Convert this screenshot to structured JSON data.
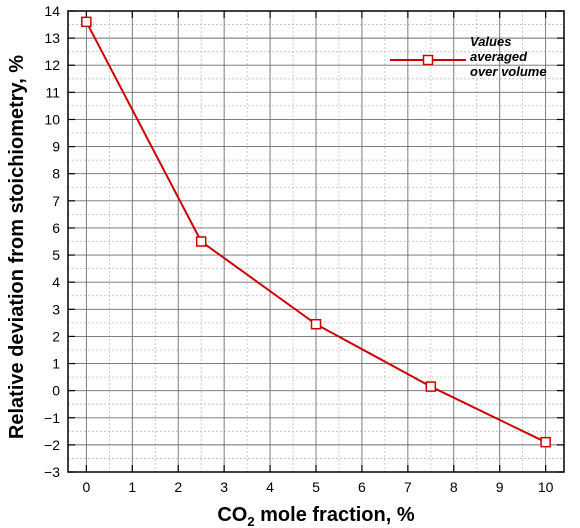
{
  "chart_data": {
    "type": "line",
    "x": [
      0,
      2.5,
      5,
      7.5,
      10
    ],
    "series": [
      {
        "name": "Values averaged over volume",
        "values": [
          13.6,
          5.5,
          2.45,
          0.15,
          -1.9
        ],
        "color": "#cc0000",
        "marker": "open-square"
      }
    ],
    "xlabel": "CO2 mole fraction, %",
    "ylabel": "Relative deviation from stoichiometry, %",
    "xlim": [
      -0.4,
      10.4
    ],
    "ylim": [
      -3,
      14
    ],
    "x_ticks": [
      0,
      1,
      2,
      3,
      4,
      5,
      6,
      7,
      8,
      9,
      10
    ],
    "y_ticks": [
      -3,
      -2,
      -1,
      0,
      1,
      2,
      3,
      4,
      5,
      6,
      7,
      8,
      9,
      10,
      11,
      12,
      13,
      14
    ],
    "grid": "major and minor",
    "legend": {
      "position": "top-right",
      "lines": [
        "Values",
        "averaged",
        "over volume"
      ]
    }
  }
}
